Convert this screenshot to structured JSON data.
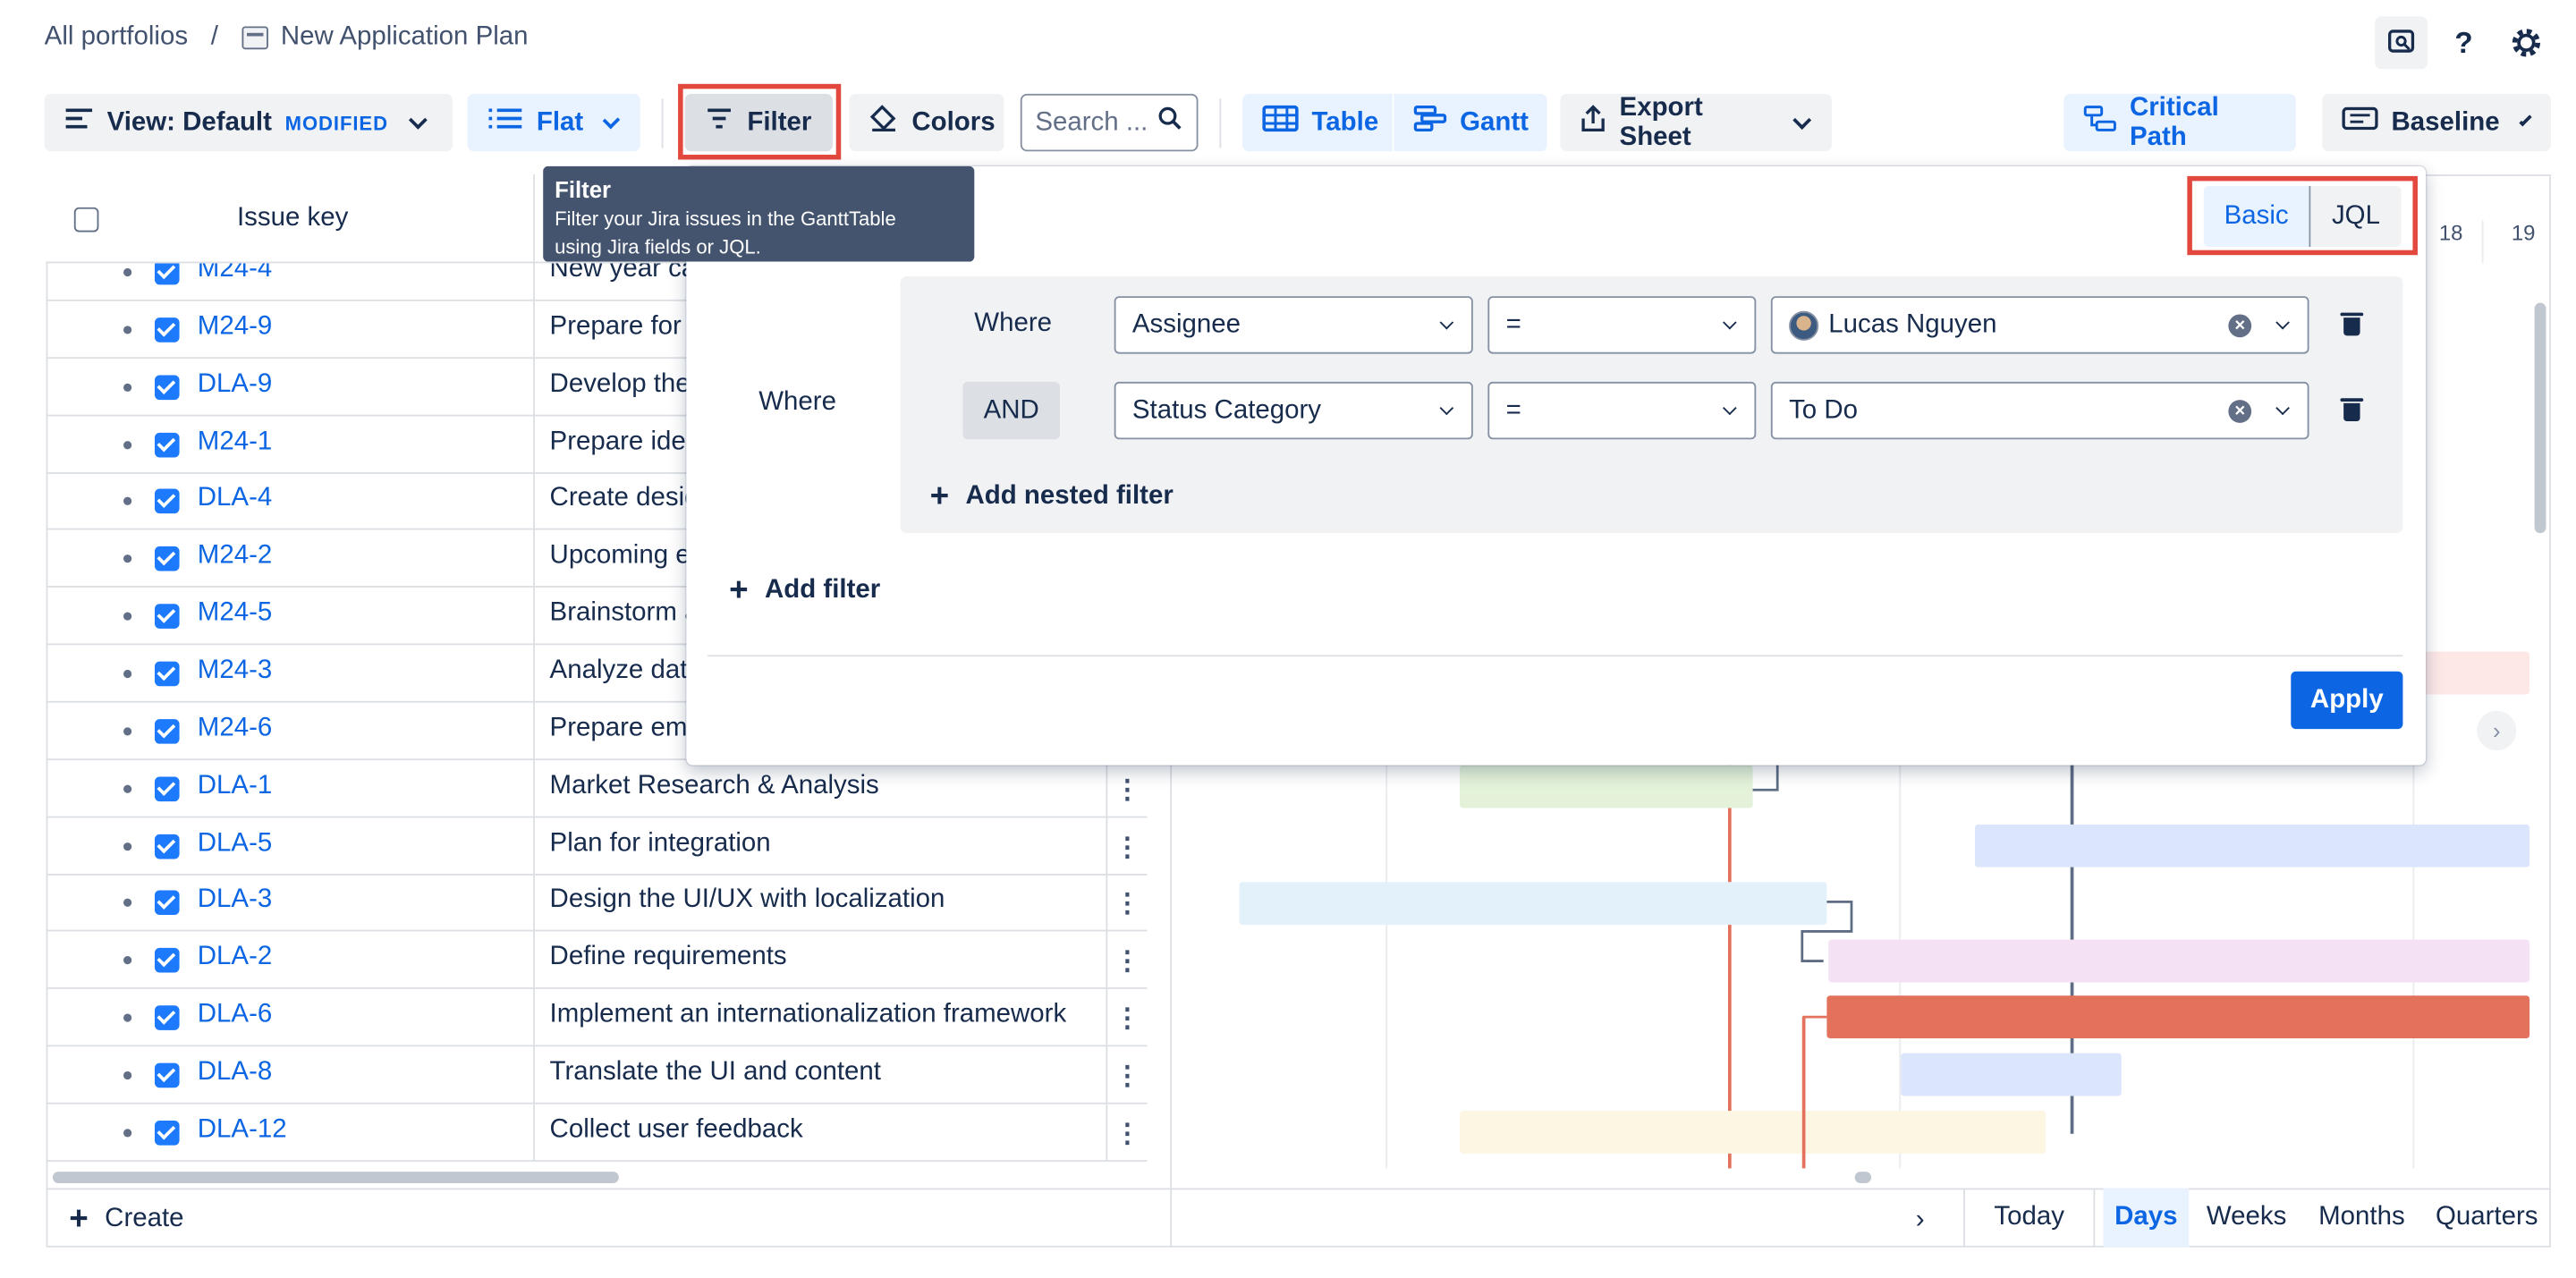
{
  "breadcrumb": {
    "root": "All portfolios",
    "separator": "/",
    "current": "New Application Plan"
  },
  "toolbar": {
    "view_label": "View: Default",
    "view_badge": "MODIFIED",
    "flat_label": "Flat",
    "filter_label": "Filter",
    "colors_label": "Colors",
    "search_placeholder": "Search ...",
    "table_label": "Table",
    "gantt_label": "Gantt",
    "export_label": "Export Sheet",
    "critical_path_label": "Critical Path",
    "baseline_label": "Baseline"
  },
  "top_icons": [
    "feedback-icon",
    "help-icon",
    "settings-icon"
  ],
  "tooltip": {
    "title": "Filter",
    "line1": "Filter your Jira issues in the GanttTable",
    "line2": "using Jira fields or JQL."
  },
  "table": {
    "header_key": "Issue key",
    "rows": [
      {
        "key": "M24-4",
        "summary": "New year ca"
      },
      {
        "key": "M24-9",
        "summary": "Prepare for"
      },
      {
        "key": "DLA-9",
        "summary": "Develop the"
      },
      {
        "key": "M24-1",
        "summary": "Prepare idea"
      },
      {
        "key": "DLA-4",
        "summary": "Create desig"
      },
      {
        "key": "M24-2",
        "summary": "Upcoming e"
      },
      {
        "key": "M24-5",
        "summary": "Brainstorm a"
      },
      {
        "key": "M24-3",
        "summary": "Analyze dat"
      },
      {
        "key": "M24-6",
        "summary": "Prepare ema"
      },
      {
        "key": "DLA-1",
        "summary": "Market Research & Analysis"
      },
      {
        "key": "DLA-5",
        "summary": "Plan for integration"
      },
      {
        "key": "DLA-3",
        "summary": "Design the UI/UX with localization"
      },
      {
        "key": "DLA-2",
        "summary": "Define requirements"
      },
      {
        "key": "DLA-6",
        "summary": "Implement an internationalization framework"
      },
      {
        "key": "DLA-8",
        "summary": "Translate the UI and content"
      },
      {
        "key": "DLA-12",
        "summary": "Collect user feedback"
      }
    ]
  },
  "gantt": {
    "day_labels": [
      "18",
      "19"
    ]
  },
  "filter_panel": {
    "mode_basic": "Basic",
    "mode_jql": "JQL",
    "outer_where": "Where",
    "conditions": [
      {
        "connector": "Where",
        "field": "Assignee",
        "operator": "=",
        "value": "Lucas Nguyen"
      },
      {
        "connector": "AND",
        "field": "Status Category",
        "operator": "=",
        "value": "To Do"
      }
    ],
    "add_nested_label": "Add nested filter",
    "add_filter_label": "Add filter",
    "apply_label": "Apply"
  },
  "footer": {
    "create_label": "Create",
    "today_label": "Today",
    "scales": [
      "Days",
      "Weeks",
      "Months",
      "Quarters"
    ],
    "active_scale": "Days"
  },
  "colors": {
    "accent": "#0c66e4",
    "highlight_box": "#e2483d",
    "critical_bar": "#e2725b"
  }
}
